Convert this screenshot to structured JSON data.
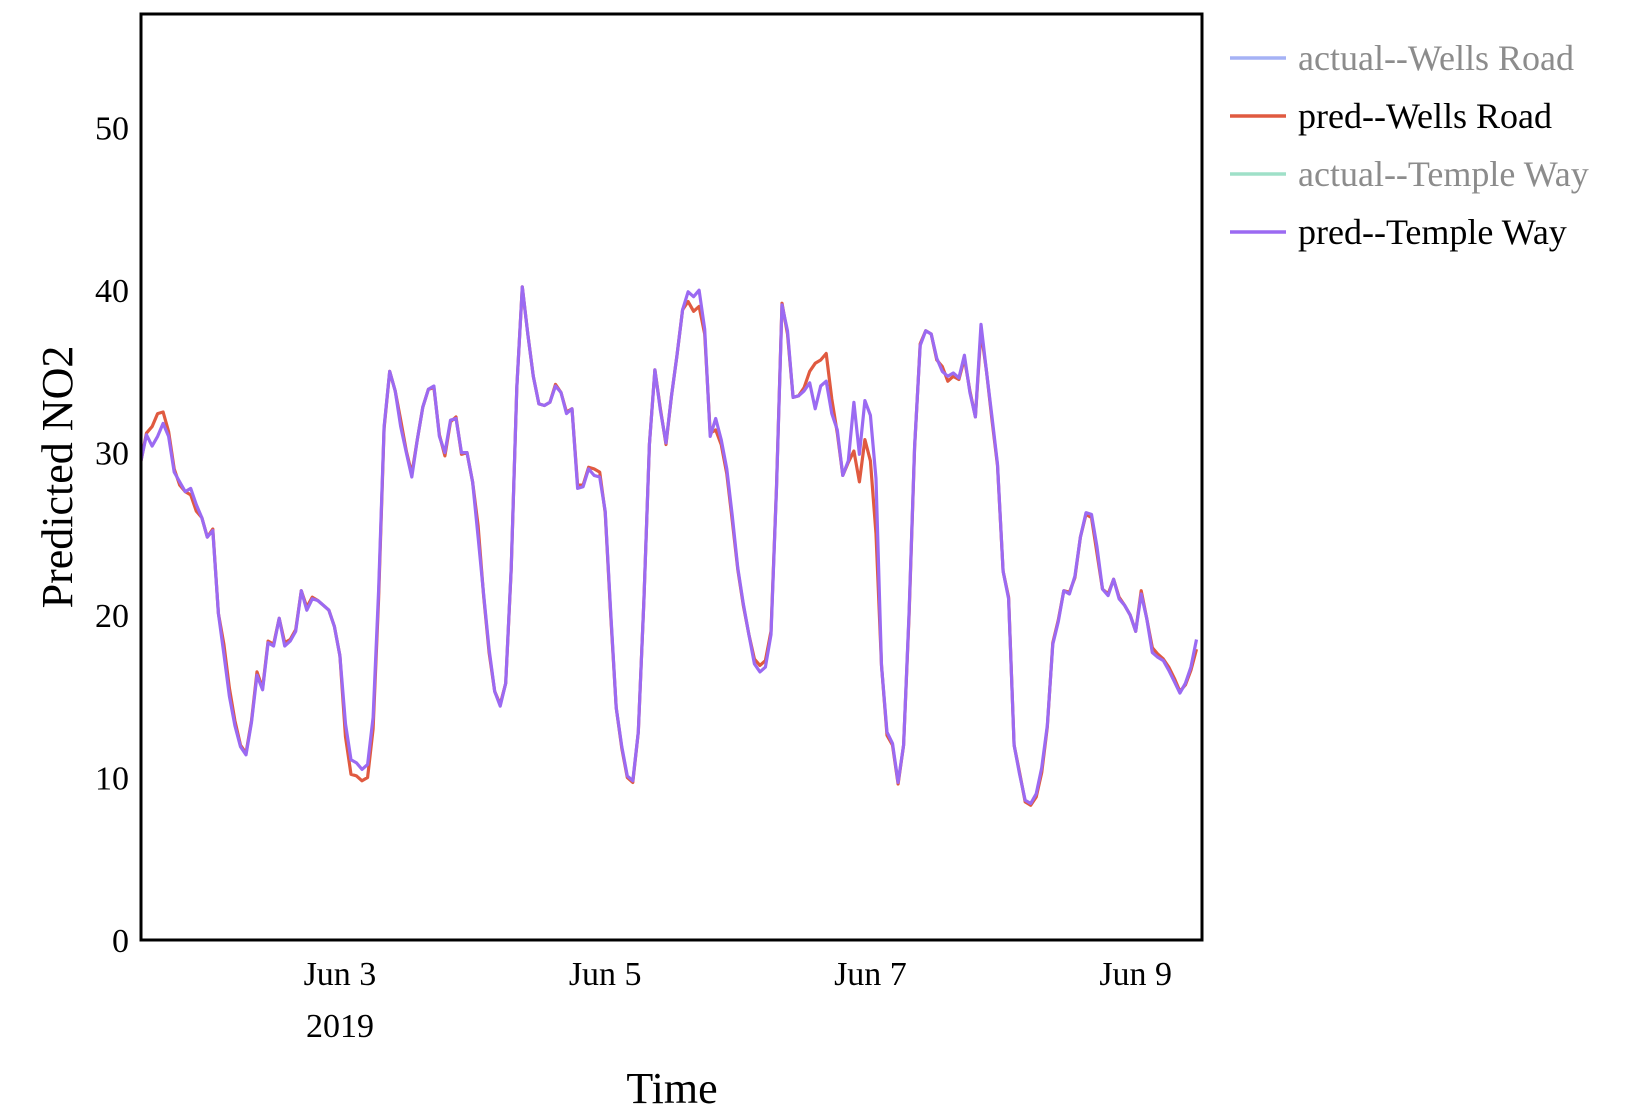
{
  "chart_data": {
    "type": "line",
    "xlabel": "Time",
    "ylabel": "Predicted NO2",
    "ylim": [
      0,
      57
    ],
    "yticks": [
      0,
      10,
      20,
      30,
      40,
      50
    ],
    "xlim": [
      "2019-06-01 12:00",
      "2019-06-09 12:00"
    ],
    "xticks": [
      {
        "value": "2019-06-03",
        "label": "Jun 3",
        "sublabel": "2019"
      },
      {
        "value": "2019-06-05",
        "label": "Jun 5",
        "sublabel": ""
      },
      {
        "value": "2019-06-07",
        "label": "Jun 7",
        "sublabel": ""
      },
      {
        "value": "2019-06-09",
        "label": "Jun 9",
        "sublabel": ""
      }
    ],
    "grid": false,
    "legend_position": "top-right outside",
    "x_start": "2019-06-01 12:00",
    "x_step_hours": 1,
    "series": [
      {
        "name": "actual--Wells Road",
        "color": "#a5b2f5",
        "visible": false,
        "values": []
      },
      {
        "name": "pred--Wells Road",
        "color": "#e05a40",
        "visible": true,
        "values": [
          29.5,
          31.2,
          31.6,
          32.4,
          32.5,
          31.3,
          29.0,
          28.0,
          27.6,
          27.4,
          26.4,
          26.0,
          24.8,
          25.3,
          20.1,
          18.2,
          15.5,
          13.5,
          12.0,
          11.5,
          13.5,
          16.5,
          15.5,
          18.4,
          18.2,
          19.8,
          18.3,
          18.5,
          19.1,
          21.5,
          20.5,
          21.1,
          20.9,
          20.6,
          20.3,
          19.3,
          17.5,
          12.5,
          10.2,
          10.1,
          9.8,
          10.0,
          13.0,
          21.0,
          31.5,
          35.0,
          33.8,
          32.0,
          30.1,
          28.7,
          30.8,
          32.8,
          33.9,
          34.0,
          31.1,
          29.8,
          31.9,
          32.2,
          29.9,
          30.0,
          28.2,
          25.5,
          21.2,
          17.7,
          15.3,
          14.5,
          15.8,
          22.8,
          34.0,
          40.2,
          37.3,
          34.7,
          33.0,
          32.9,
          33.1,
          34.2,
          33.7,
          32.5,
          32.7,
          28.0,
          28.0,
          29.1,
          29.0,
          28.8,
          26.3,
          20.0,
          14.3,
          11.8,
          10.0,
          9.7,
          12.8,
          20.9,
          30.5,
          35.1,
          32.7,
          30.5,
          33.5,
          36.0,
          38.8,
          39.3,
          38.7,
          39.0,
          37.3,
          31.2,
          31.4,
          30.5,
          28.7,
          25.8,
          22.8,
          20.6,
          18.8,
          17.3,
          16.9,
          17.2,
          19.0,
          27.9,
          39.2,
          37.3,
          33.4,
          33.5,
          34.0,
          35.0,
          35.5,
          35.7,
          36.1,
          33.3,
          31.2,
          28.6,
          29.4,
          30.1,
          28.2,
          30.8,
          29.5,
          25.0,
          16.9,
          12.6,
          12.0,
          9.6,
          12.0,
          20.0,
          30.3,
          36.7,
          37.5,
          37.3,
          35.7,
          35.3,
          34.4,
          34.7,
          34.5,
          35.8,
          33.8,
          32.2,
          37.5,
          35.0,
          32.0,
          29.2,
          22.7,
          21.1,
          12.0,
          10.3,
          8.5,
          8.3,
          8.8,
          10.3,
          13.1,
          18.3,
          19.7,
          21.5,
          21.4,
          22.3,
          24.8,
          26.2,
          26.0,
          23.8,
          21.6,
          21.3,
          22.2,
          21.1,
          20.6,
          20.0,
          19.0,
          21.5,
          19.8,
          18.0,
          17.6,
          17.3,
          16.8,
          16.1,
          15.3,
          15.7,
          16.6,
          17.9
        ]
      },
      {
        "name": "actual--Temple Way",
        "color": "#9fe0c8",
        "visible": false,
        "values": []
      },
      {
        "name": "pred--Temple Way",
        "color": "#9b6af2",
        "visible": true,
        "values": [
          29.5,
          31.1,
          30.4,
          31.0,
          31.8,
          31.0,
          28.8,
          28.2,
          27.6,
          27.8,
          26.8,
          26.0,
          24.8,
          25.2,
          20.1,
          17.6,
          15.0,
          13.2,
          11.9,
          11.4,
          13.4,
          16.3,
          15.4,
          18.3,
          18.1,
          19.8,
          18.1,
          18.4,
          19.0,
          21.5,
          20.3,
          21.0,
          20.9,
          20.6,
          20.3,
          19.3,
          17.5,
          13.3,
          11.1,
          10.9,
          10.5,
          10.8,
          13.7,
          21.5,
          31.6,
          35.0,
          33.8,
          31.6,
          30.0,
          28.5,
          30.8,
          32.8,
          33.9,
          34.1,
          31.0,
          30.0,
          32.0,
          32.1,
          30.0,
          30.0,
          28.2,
          24.8,
          21.3,
          17.9,
          15.3,
          14.4,
          15.8,
          22.9,
          34.0,
          40.2,
          37.3,
          34.7,
          33.0,
          32.9,
          33.1,
          34.1,
          33.7,
          32.4,
          32.7,
          27.8,
          27.9,
          29.0,
          28.6,
          28.5,
          26.4,
          20.2,
          14.3,
          11.9,
          10.1,
          9.8,
          12.8,
          20.9,
          30.5,
          35.1,
          32.6,
          30.6,
          33.5,
          36.0,
          38.8,
          39.9,
          39.6,
          40.0,
          37.6,
          31.0,
          32.1,
          30.8,
          29.0,
          26.1,
          22.9,
          20.7,
          18.8,
          17.0,
          16.5,
          16.8,
          18.8,
          27.8,
          39.1,
          37.5,
          33.4,
          33.5,
          33.8,
          34.3,
          32.7,
          34.1,
          34.4,
          32.4,
          31.4,
          28.6,
          29.5,
          33.1,
          29.9,
          33.2,
          32.3,
          28.4,
          16.9,
          12.8,
          12.1,
          9.7,
          12.0,
          20.2,
          30.4,
          36.6,
          37.5,
          37.3,
          35.8,
          35.0,
          34.7,
          34.9,
          34.6,
          36.0,
          33.7,
          32.2,
          37.9,
          35.0,
          32.2,
          29.3,
          22.7,
          21.0,
          12.0,
          10.2,
          8.6,
          8.4,
          9.0,
          10.6,
          13.2,
          18.2,
          19.6,
          21.5,
          21.3,
          22.4,
          24.8,
          26.3,
          26.2,
          24.2,
          21.6,
          21.2,
          22.2,
          21.0,
          20.6,
          20.0,
          19.0,
          21.3,
          19.8,
          17.7,
          17.4,
          17.2,
          16.6,
          15.9,
          15.2,
          15.8,
          16.8,
          18.5
        ]
      }
    ]
  }
}
